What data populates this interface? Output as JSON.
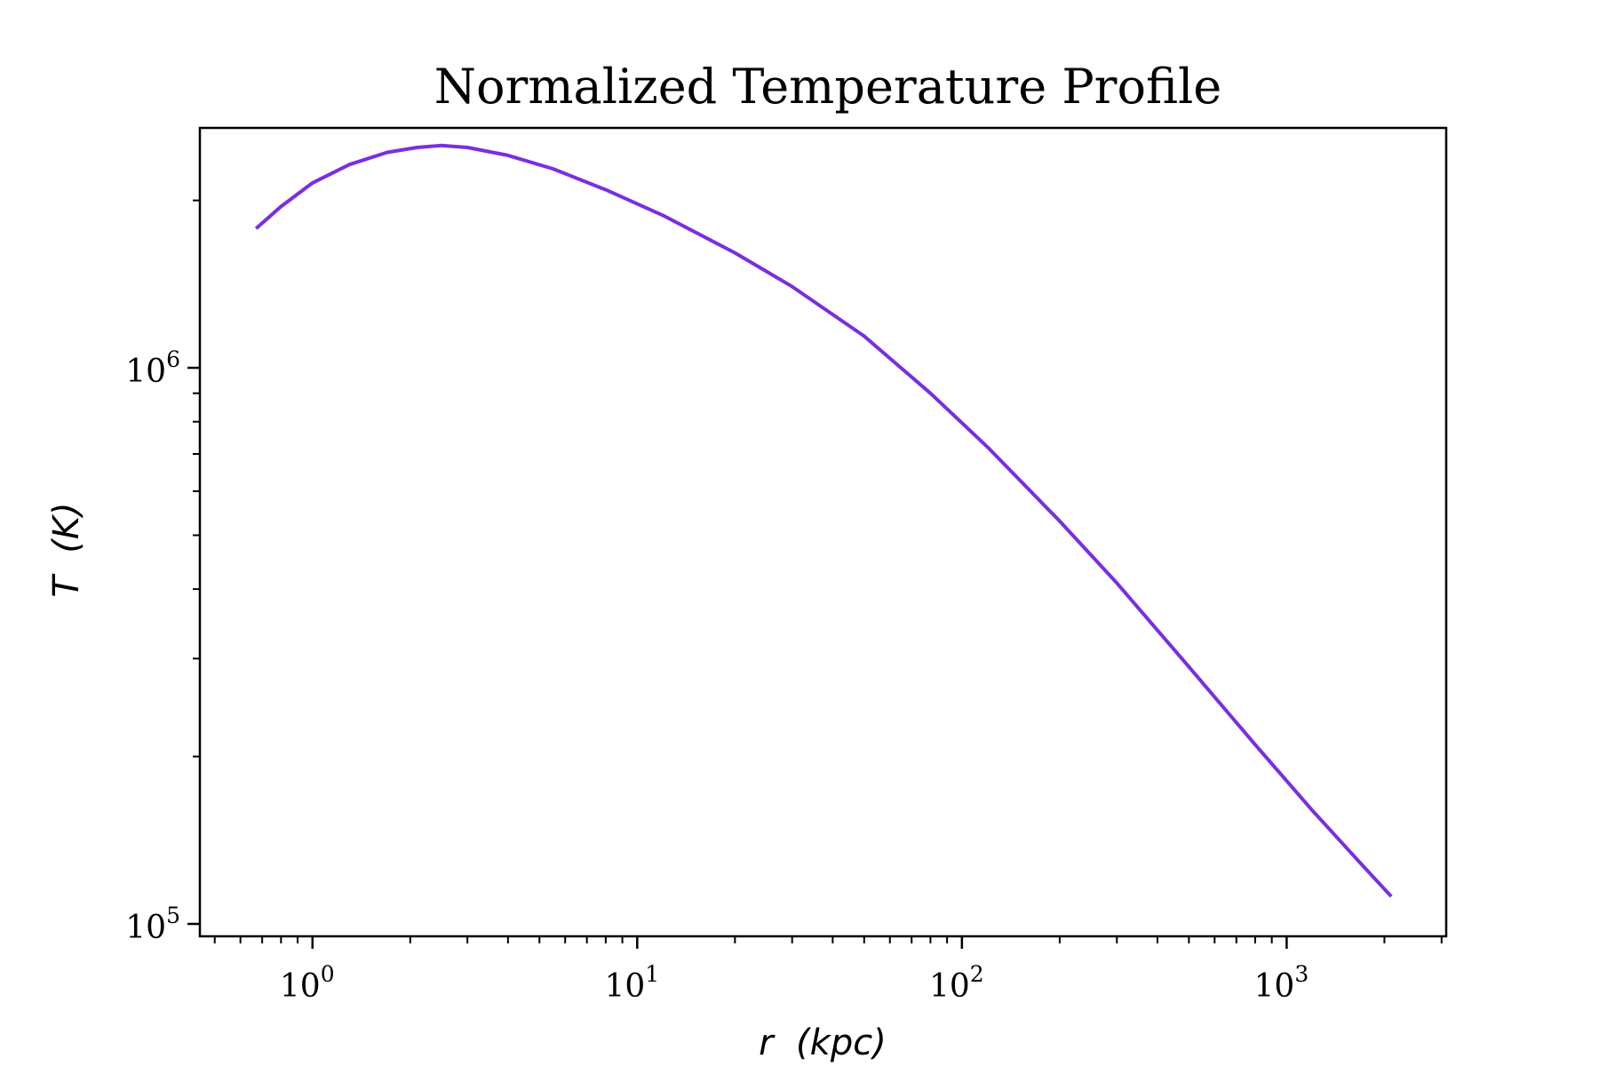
{
  "chart_data": {
    "type": "line",
    "title": "Normalized Temperature Profile",
    "xlabel": "r  (kpc)",
    "ylabel": "T  (K)",
    "xscale": "log",
    "yscale": "log",
    "xlim": [
      0.45,
      3100
    ],
    "ylim": [
      95000,
      2700000
    ],
    "grid": false,
    "line_color": "#7a2ee0",
    "x_ticks": [
      {
        "base": "10",
        "exp": "0",
        "value": 1
      },
      {
        "base": "10",
        "exp": "1",
        "value": 10
      },
      {
        "base": "10",
        "exp": "2",
        "value": 100
      },
      {
        "base": "10",
        "exp": "3",
        "value": 1000
      }
    ],
    "y_ticks": [
      {
        "base": "10",
        "exp": "5",
        "value": 100000
      },
      {
        "base": "10",
        "exp": "6",
        "value": 1000000
      }
    ],
    "series": [
      {
        "x": [
          0.67,
          0.8,
          1.0,
          1.3,
          1.7,
          2.1,
          2.5,
          3.0,
          4.0,
          5.5,
          8.0,
          12,
          20,
          30,
          50,
          80,
          120,
          200,
          300,
          500,
          800,
          1200,
          1700,
          2100
        ],
        "y": [
          1780000,
          1950000,
          2150000,
          2320000,
          2440000,
          2490000,
          2510000,
          2490000,
          2410000,
          2280000,
          2090000,
          1880000,
          1610000,
          1400000,
          1140000,
          900000,
          720000,
          530000,
          410000,
          290000,
          210000,
          160000,
          128000,
          112000
        ]
      }
    ]
  }
}
